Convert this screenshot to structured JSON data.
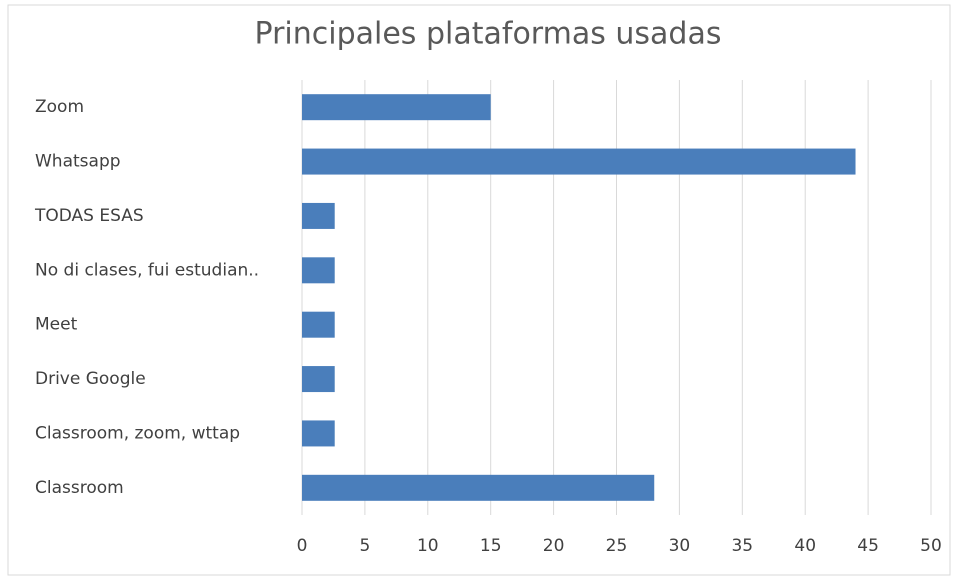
{
  "chart_data": {
    "type": "bar",
    "orientation": "horizontal",
    "title": "Principales plataformas usadas",
    "categories": [
      "Zoom",
      "Whatsapp",
      "TODAS ESAS",
      "No di clases, fui estudian..",
      "Meet",
      "Drive Google",
      "Classroom, zoom, wttap",
      "Classroom"
    ],
    "values": [
      15,
      44,
      2.6,
      2.6,
      2.6,
      2.6,
      2.6,
      28
    ],
    "color": "#4a7ebb",
    "xlim": [
      0,
      50
    ],
    "xticks": [
      0,
      5,
      10,
      15,
      20,
      25,
      30,
      35,
      40,
      45,
      50
    ],
    "grid": true
  }
}
